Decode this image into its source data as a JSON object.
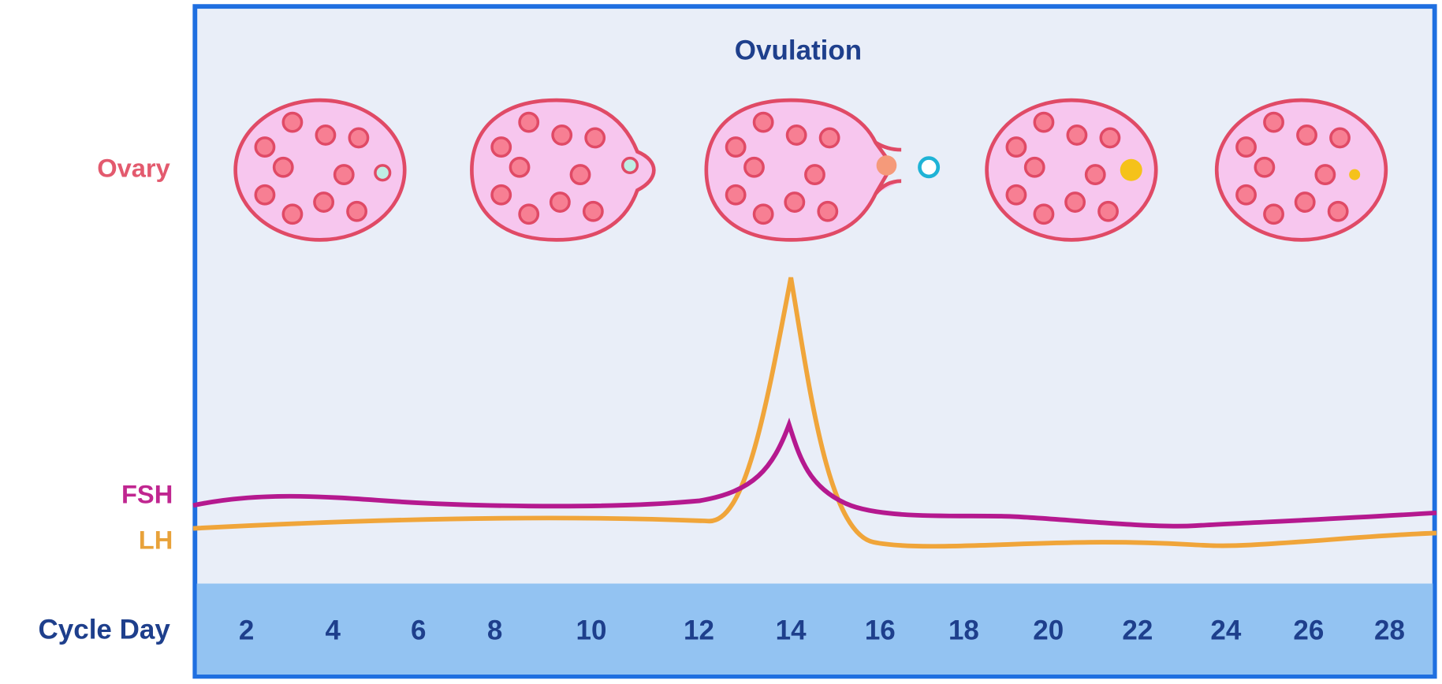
{
  "header": {
    "title": "Ovulation"
  },
  "labels": {
    "ovary": "Ovary",
    "fsh": "FSH",
    "lh": "LH",
    "cycle_day": "Cycle Day"
  },
  "days": [
    2,
    4,
    6,
    8,
    10,
    12,
    14,
    16,
    18,
    20,
    22,
    24,
    26,
    28
  ]
}
